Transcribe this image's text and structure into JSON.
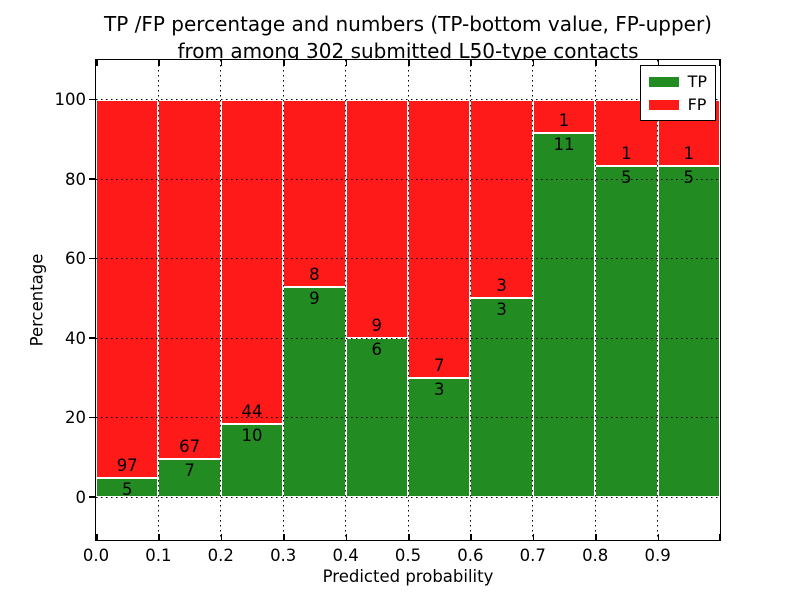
{
  "title": {
    "line1": "TP /FP percentage and numbers (TP-bottom value, FP-upper)",
    "line2": "from among 302 submitted L50-type contacts"
  },
  "axes": {
    "xlabel": "Predicted probability",
    "ylabel": "Percentage",
    "xticks": [
      "0.0",
      "0.1",
      "0.2",
      "0.3",
      "0.4",
      "0.5",
      "0.6",
      "0.7",
      "0.8",
      "0.9"
    ],
    "yticks": [
      0,
      20,
      40,
      60,
      80,
      100
    ],
    "xlim": [
      0.0,
      1.0
    ],
    "ylim": [
      -10.8,
      110
    ],
    "grid": "dotted"
  },
  "legend": {
    "position": "upper right",
    "items": [
      {
        "label": "TP",
        "color": "#228B22"
      },
      {
        "label": "FP",
        "color": "#FF1A1A"
      }
    ]
  },
  "colors": {
    "tp": "#228B22",
    "fp": "#FF1A1A",
    "bar_edge": "#FFFFFF",
    "grid": "#000000",
    "frame": "#000000",
    "background": "#FFFFFF",
    "text": "#000000"
  },
  "chart_data": {
    "type": "bar",
    "stacked": true,
    "normalized_to_percent": true,
    "title": "TP /FP percentage and numbers (TP-bottom value, FP-upper) from among 302 submitted L50-type contacts",
    "xlabel": "Predicted probability",
    "ylabel": "Percentage",
    "total_submitted_contacts": 302,
    "bin_width": 0.1,
    "categories": [
      "0.0-0.1",
      "0.1-0.2",
      "0.2-0.3",
      "0.3-0.4",
      "0.4-0.5",
      "0.5-0.6",
      "0.6-0.7",
      "0.7-0.8",
      "0.8-0.9",
      "0.9-1.0"
    ],
    "series": [
      {
        "name": "TP",
        "color": "#228B22",
        "counts": [
          5,
          7,
          10,
          9,
          6,
          3,
          3,
          11,
          5,
          5
        ],
        "percent": [
          4.9,
          9.5,
          18.5,
          52.9,
          40.0,
          30.0,
          50.0,
          91.7,
          83.3,
          83.3
        ]
      },
      {
        "name": "FP",
        "color": "#FF1A1A",
        "counts": [
          97,
          67,
          44,
          8,
          9,
          7,
          3,
          1,
          1,
          1
        ],
        "percent": [
          95.1,
          90.5,
          81.5,
          47.1,
          60.0,
          70.0,
          50.0,
          8.3,
          16.7,
          16.7
        ]
      }
    ],
    "xlim": [
      0.0,
      1.0
    ],
    "ylim": [
      -10.8,
      110
    ],
    "grid": "dotted",
    "legend_position": "upper right"
  }
}
